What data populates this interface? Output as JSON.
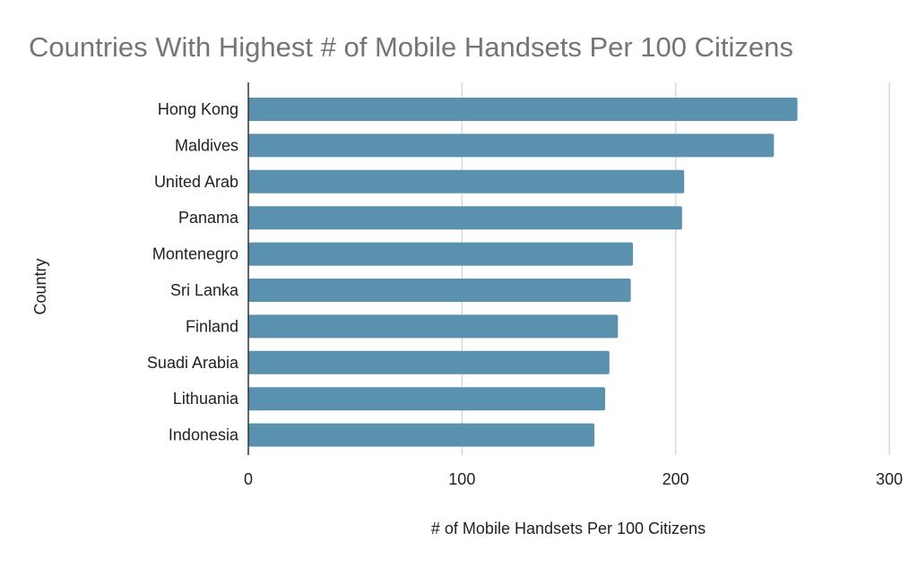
{
  "chart_data": {
    "type": "bar",
    "orientation": "horizontal",
    "title": "Countries With Highest # of Mobile Handsets Per 100 Citizens",
    "xlabel": "# of Mobile Handsets Per 100 Citizens",
    "ylabel": "Country",
    "categories": [
      "Hong Kong",
      "Maldives",
      "United Arab",
      "Panama",
      "Montenegro",
      "Sri Lanka",
      "Finland",
      "Suadi Arabia",
      "Lithuania",
      "Indonesia"
    ],
    "values": [
      257,
      246,
      204,
      203,
      180,
      179,
      173,
      169,
      167,
      162
    ],
    "xlim": [
      0,
      300
    ],
    "xticks": [
      "0",
      "100",
      "200",
      "300"
    ],
    "grid": true,
    "legend": "none",
    "bar_color": "#5991ae",
    "grid_color": "#d9d9d9",
    "axis_color": "#333333",
    "title_color": "#757575"
  }
}
